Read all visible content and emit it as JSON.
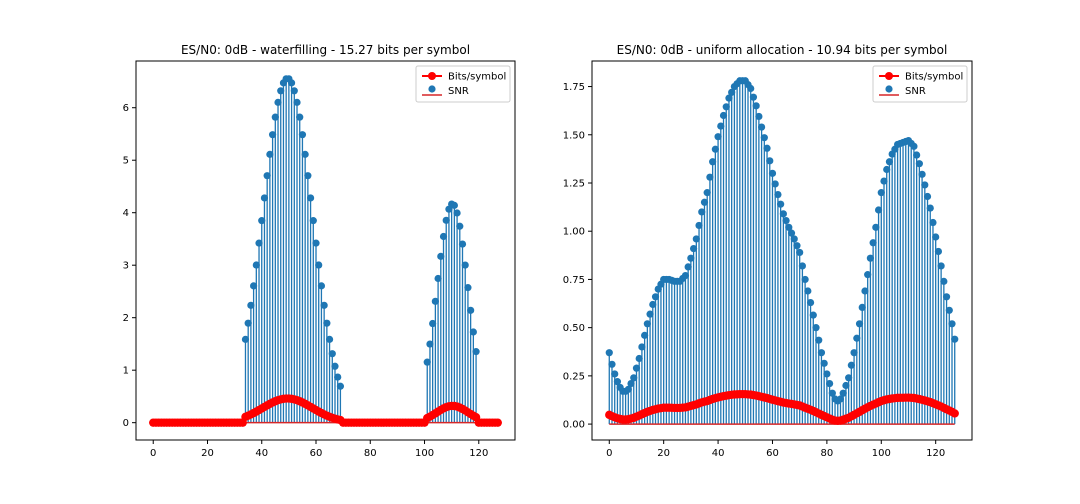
{
  "colors": {
    "stem": "#1f77b4",
    "bits": "#ff0000",
    "baseline": "#d62728"
  },
  "chart_data": [
    {
      "type": "stem",
      "title": "ES/N0: 0dB - waterfilling - 15.27 bits per symbol",
      "xlabel": "",
      "ylabel": "",
      "xlim": [
        -6.35,
        133.35
      ],
      "ylim": [
        -0.33,
        6.89
      ],
      "xticks": [
        0,
        20,
        40,
        60,
        80,
        100,
        120
      ],
      "yticks": [
        0,
        1,
        2,
        3,
        4,
        5,
        6
      ],
      "legend": {
        "placement": "top-right",
        "entries": [
          "Bits/symbol",
          "SNR"
        ]
      },
      "series": [
        {
          "name": "SNR",
          "kind": "stem",
          "peaks": [
            {
              "center": 49.5,
              "width": 9.2,
              "amp": 6.56,
              "start": 34,
              "end": 69
            },
            {
              "center": 110.3,
              "width": 5.8,
              "amp": 4.17,
              "start": 101,
              "end": 119
            }
          ]
        },
        {
          "name": "Bits/symbol",
          "kind": "line-marker",
          "color": "#ff0000",
          "peaks": [
            {
              "center": 49.5,
              "width": 9.2,
              "amp": 0.46,
              "start": 34,
              "end": 69
            },
            {
              "center": 110.3,
              "width": 5.8,
              "amp": 0.32,
              "start": 101,
              "end": 119
            }
          ]
        }
      ]
    },
    {
      "type": "stem",
      "title": "ES/N0: 0dB - uniform allocation  - 10.94 bits per symbol",
      "xlabel": "",
      "ylabel": "",
      "xlim": [
        -6.35,
        133.35
      ],
      "ylim": [
        -0.0825,
        1.8825
      ],
      "xticks": [
        0,
        20,
        40,
        60,
        80,
        100,
        120
      ],
      "yticks": [
        0.0,
        0.25,
        0.5,
        0.75,
        1.0,
        1.25,
        1.5,
        1.75
      ],
      "legend": {
        "placement": "top-right",
        "entries": [
          "Bits/symbol",
          "SNR"
        ]
      },
      "series": [
        {
          "name": "SNR",
          "kind": "stem",
          "keypoints": [
            [
              0,
              0.37
            ],
            [
              1,
              0.31
            ],
            [
              2,
              0.26
            ],
            [
              3,
              0.22
            ],
            [
              4,
              0.19
            ],
            [
              5,
              0.17
            ],
            [
              6,
              0.17
            ],
            [
              7,
              0.18
            ],
            [
              8,
              0.21
            ],
            [
              9,
              0.24
            ],
            [
              10,
              0.29
            ],
            [
              11,
              0.34
            ],
            [
              12,
              0.4
            ],
            [
              14,
              0.52
            ],
            [
              16,
              0.62
            ],
            [
              18,
              0.7
            ],
            [
              20,
              0.75
            ],
            [
              22,
              0.75
            ],
            [
              24,
              0.74
            ],
            [
              26,
              0.74
            ],
            [
              28,
              0.77
            ],
            [
              30,
              0.86
            ],
            [
              32,
              0.96
            ],
            [
              34,
              1.1
            ],
            [
              36,
              1.2
            ],
            [
              38,
              1.36
            ],
            [
              40,
              1.49
            ],
            [
              42,
              1.6
            ],
            [
              44,
              1.69
            ],
            [
              46,
              1.75
            ],
            [
              48,
              1.78
            ],
            [
              50,
              1.78
            ],
            [
              52,
              1.74
            ],
            [
              54,
              1.65
            ],
            [
              56,
              1.54
            ],
            [
              58,
              1.43
            ],
            [
              60,
              1.3
            ],
            [
              62,
              1.19
            ],
            [
              64,
              1.09
            ],
            [
              66,
              1.02
            ],
            [
              68,
              0.96
            ],
            [
              70,
              0.89
            ],
            [
              72,
              0.75
            ],
            [
              74,
              0.63
            ],
            [
              76,
              0.5
            ],
            [
              78,
              0.37
            ],
            [
              80,
              0.26
            ],
            [
              81,
              0.21
            ],
            [
              82,
              0.16
            ],
            [
              83,
              0.13
            ],
            [
              84,
              0.12
            ],
            [
              85,
              0.13
            ],
            [
              86,
              0.16
            ],
            [
              88,
              0.24
            ],
            [
              90,
              0.37
            ],
            [
              92,
              0.52
            ],
            [
              94,
              0.69
            ],
            [
              96,
              0.86
            ],
            [
              98,
              1.02
            ],
            [
              100,
              1.2
            ],
            [
              102,
              1.32
            ],
            [
              104,
              1.4
            ],
            [
              106,
              1.45
            ],
            [
              108,
              1.46
            ],
            [
              110,
              1.47
            ],
            [
              112,
              1.44
            ],
            [
              114,
              1.35
            ],
            [
              116,
              1.24
            ],
            [
              118,
              1.12
            ],
            [
              120,
              0.97
            ],
            [
              122,
              0.82
            ],
            [
              124,
              0.66
            ],
            [
              126,
              0.52
            ],
            [
              127,
              0.44
            ]
          ]
        },
        {
          "name": "Bits/symbol",
          "kind": "line-marker",
          "color": "#ff0000",
          "derived_from": "log2(1+SNR)"
        }
      ]
    }
  ]
}
